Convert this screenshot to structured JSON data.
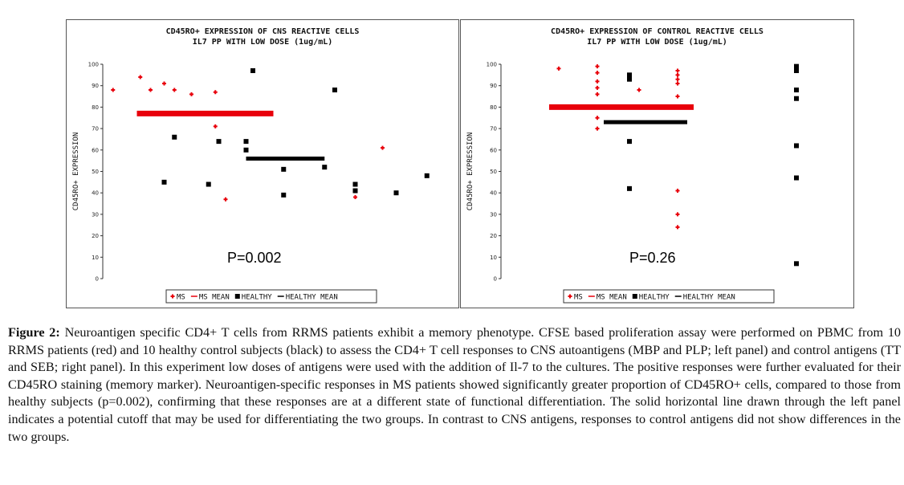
{
  "figure": {
    "caption_label": "Figure 2:",
    "caption_text": "Neuroantigen specific CD4+ T cells from RRMS patients exhibit a memory phenotype. CFSE based proliferation assay were performed on PBMC from 10 RRMS patients (red) and 10 healthy control subjects (black) to assess the CD4+ T cell responses to CNS autoantigens (MBP and PLP; left panel) and control antigens (TT and SEB; right panel). In this experiment low doses of antigens were used with the addition of Il-7 to the cultures. The positive responses were further evaluated for their CD45RO staining (memory marker). Neuroantigen-specific responses in MS patients showed significantly greater proportion of CD45RO+ cells, compared to those from healthy subjects (p=0.002), confirming that these responses are at a different state of functional differentiation. The solid horizontal line drawn through the left panel indicates a potential cutoff that may be used for differentiating the two groups. In contrast to CNS antigens, responses to control antigens did not show differences in the two groups."
  },
  "colors": {
    "ms": "#e8000b",
    "healthy": "#000000"
  },
  "chart_data": [
    {
      "type": "scatter",
      "title": "CD45RO+ EXPRESSION OF CNS REACTIVE CELLS",
      "subtitle": "IL7 PP WITH LOW DOSE (1ug/mL)",
      "ylabel": "CD45RO+ EXPRESSION",
      "ylim": [
        0,
        100
      ],
      "yticks": [
        "0",
        "10",
        "20",
        "30",
        "40",
        "50",
        "60",
        "70",
        "80",
        "90",
        "100"
      ],
      "annotation": "P=0.002",
      "legend_placement": "bottom",
      "legend": [
        "MS",
        "MS MEAN",
        "HEALTHY",
        "HEALTHY MEAN"
      ],
      "series": [
        {
          "name": "MS",
          "points": [
            [
              0.03,
              88
            ],
            [
              0.11,
              94
            ],
            [
              0.14,
              88
            ],
            [
              0.18,
              91
            ],
            [
              0.21,
              88
            ],
            [
              0.26,
              86
            ],
            [
              0.33,
              87
            ],
            [
              0.33,
              71
            ],
            [
              0.36,
              37
            ],
            [
              0.37,
              77
            ],
            [
              0.38,
              77
            ],
            [
              0.4,
              77
            ],
            [
              0.42,
              77
            ],
            [
              0.44,
              77
            ],
            [
              0.74,
              38
            ],
            [
              0.82,
              61
            ]
          ]
        },
        {
          "name": "MS MEAN",
          "points": [
            [
              0.1,
              77
            ],
            [
              0.5,
              77
            ]
          ]
        },
        {
          "name": "HEALTHY",
          "points": [
            [
              0.18,
              45
            ],
            [
              0.21,
              66
            ],
            [
              0.31,
              44
            ],
            [
              0.34,
              64
            ],
            [
              0.42,
              64
            ],
            [
              0.42,
              60
            ],
            [
              0.44,
              97
            ],
            [
              0.53,
              39
            ],
            [
              0.53,
              51
            ],
            [
              0.65,
              52
            ],
            [
              0.68,
              88
            ],
            [
              0.74,
              44
            ],
            [
              0.74,
              41
            ],
            [
              0.86,
              40
            ],
            [
              0.95,
              48
            ]
          ]
        },
        {
          "name": "HEALTHY MEAN",
          "points": [
            [
              0.42,
              56
            ],
            [
              0.65,
              56
            ]
          ]
        }
      ]
    },
    {
      "type": "scatter",
      "title": "CD45RO+ EXPRESSION OF CONTROL REACTIVE CELLS",
      "subtitle": "IL7 PP WITH LOW DOSE (1ug/mL)",
      "ylabel": "CD45RO+ EXPRESSION",
      "ylim": [
        0,
        100
      ],
      "yticks": [
        "0",
        "10",
        "20",
        "30",
        "40",
        "50",
        "60",
        "70",
        "80",
        "90",
        "100"
      ],
      "annotation": "P=0.26",
      "legend_placement": "bottom",
      "legend": [
        "MS",
        "MS MEAN",
        "HEALTHY",
        "HEALTHY MEAN"
      ],
      "series": [
        {
          "name": "MS",
          "points": [
            [
              0.18,
              98
            ],
            [
              0.3,
              99
            ],
            [
              0.3,
              96
            ],
            [
              0.3,
              92
            ],
            [
              0.3,
              89
            ],
            [
              0.3,
              86
            ],
            [
              0.3,
              75
            ],
            [
              0.3,
              70
            ],
            [
              0.43,
              88
            ],
            [
              0.55,
              97
            ],
            [
              0.55,
              95
            ],
            [
              0.55,
              93
            ],
            [
              0.55,
              91
            ],
            [
              0.55,
              85
            ],
            [
              0.55,
              41
            ],
            [
              0.55,
              30
            ],
            [
              0.55,
              24
            ]
          ]
        },
        {
          "name": "MS MEAN",
          "points": [
            [
              0.15,
              80
            ],
            [
              0.6,
              80
            ]
          ]
        },
        {
          "name": "HEALTHY",
          "points": [
            [
              0.4,
              95
            ],
            [
              0.4,
              93
            ],
            [
              0.4,
              64
            ],
            [
              0.4,
              42
            ],
            [
              0.92,
              99
            ],
            [
              0.92,
              97
            ],
            [
              0.92,
              88
            ],
            [
              0.92,
              84
            ],
            [
              0.92,
              62
            ],
            [
              0.92,
              47
            ],
            [
              0.92,
              7
            ]
          ]
        },
        {
          "name": "HEALTHY MEAN",
          "points": [
            [
              0.32,
              73
            ],
            [
              0.58,
              73
            ]
          ]
        }
      ]
    }
  ]
}
